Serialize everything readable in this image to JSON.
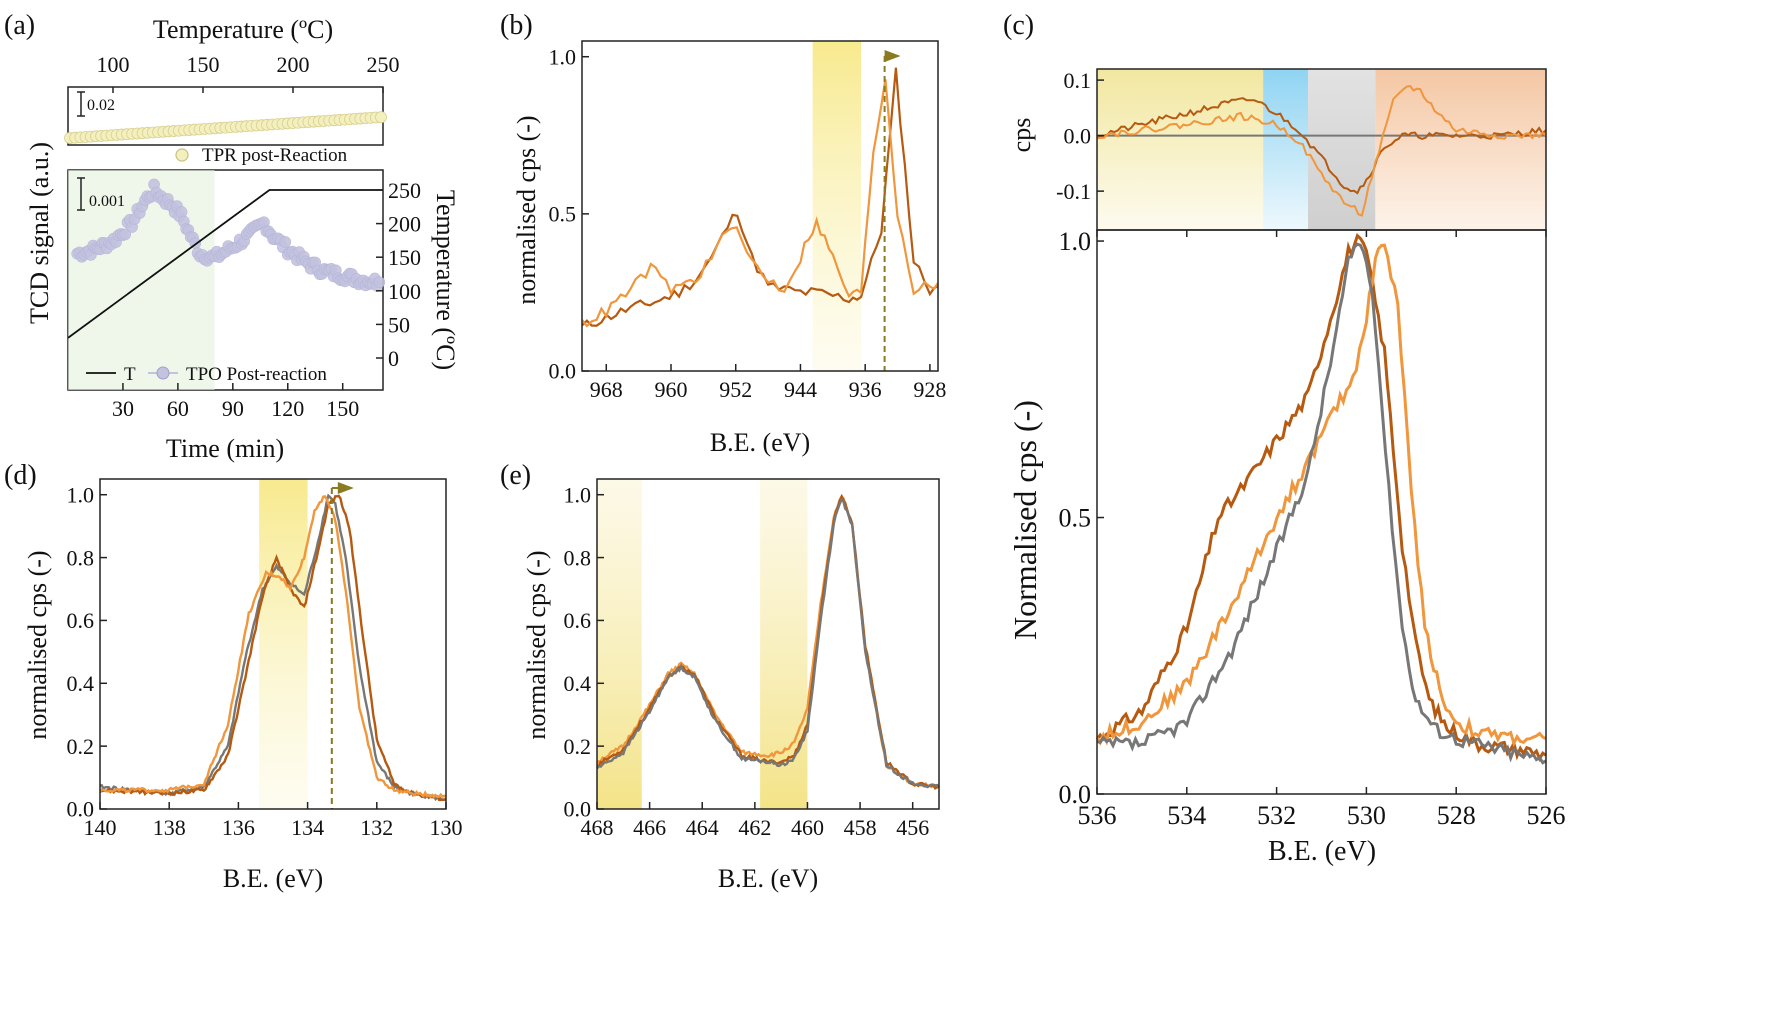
{
  "panel_labels": {
    "a": "(a)",
    "b": "(b)",
    "c": "(c)",
    "d": "(d)",
    "e": "(e)"
  },
  "colors": {
    "dark_orange": "#b55a10",
    "light_orange": "#f0963c",
    "gray": "#777777",
    "tpr_fill": "#f4efbf",
    "tpo_fill": "#c3c3e0",
    "yellow_band": "#f7e990",
    "blue_band": "#9ed8f0",
    "gray_band": "#d8d8d8",
    "peach_band": "#f6d2b4",
    "marker_arrow": "#8a7a20"
  },
  "chart_data": [
    {
      "id": "a",
      "type": "scatter",
      "top_axis": {
        "label": "Temperature (ºC)",
        "ticks": [
          100,
          150,
          200,
          250
        ]
      },
      "ylabel": "TCD signal (a.u.)",
      "xlabel": "Time (min)",
      "right_ylabel": "Temperature (ºC)",
      "x_ticks": [
        30,
        60,
        90,
        120,
        150
      ],
      "right_y_ticks": [
        0,
        50,
        100,
        150,
        200,
        250
      ],
      "scale_bars": [
        "0.02",
        "0.001"
      ],
      "series": [
        {
          "name": "TPR post-Reaction"
        },
        {
          "name": "TPO Post-reaction"
        },
        {
          "name": "T"
        }
      ],
      "tpo_x": [
        5,
        15,
        25,
        35,
        42,
        47,
        52,
        57,
        62,
        67,
        72,
        80,
        90,
        100,
        107,
        112,
        120,
        130,
        140,
        150,
        160,
        170
      ],
      "tpo_y": [
        0.62,
        0.64,
        0.68,
        0.76,
        0.86,
        0.91,
        0.87,
        0.84,
        0.79,
        0.7,
        0.62,
        0.6,
        0.65,
        0.71,
        0.76,
        0.7,
        0.64,
        0.58,
        0.54,
        0.52,
        0.5,
        0.49
      ],
      "tpr_y_start": 0.12,
      "tpr_y_end": 0.48,
      "temperature_ramp": {
        "t0": 0,
        "T0": 30,
        "t_end": 110,
        "T_end": 250,
        "t_max": 172
      }
    },
    {
      "id": "b",
      "type": "line",
      "xlabel": "B.E. (eV)",
      "ylabel": "normalised cps (-)",
      "x_ticks": [
        968,
        960,
        952,
        944,
        936,
        928
      ],
      "y_ticks": [
        "0.0",
        "0.5",
        "1.0"
      ],
      "xlim": [
        971,
        927
      ],
      "ylim": [
        0,
        1.05
      ],
      "band": [
        942.5,
        936.5
      ],
      "marker_line": 933.6,
      "series": [
        {
          "x": [
            971,
            968,
            965,
            962,
            959,
            957,
            955,
            953,
            951.8,
            950,
            948,
            946,
            944,
            942,
            940,
            938,
            936.5,
            934,
            932.2,
            930,
            928,
            927
          ],
          "y": [
            0.14,
            0.17,
            0.2,
            0.22,
            0.25,
            0.29,
            0.36,
            0.46,
            0.51,
            0.36,
            0.27,
            0.26,
            0.25,
            0.25,
            0.24,
            0.23,
            0.24,
            0.45,
            0.95,
            0.35,
            0.26,
            0.27
          ]
        },
        {
          "x": [
            971,
            968,
            965,
            962.5,
            960,
            957,
            955,
            953,
            952.5,
            950,
            948,
            946,
            944,
            943,
            942,
            941,
            940,
            938,
            936.5,
            935,
            933.5,
            932,
            930,
            928,
            927
          ],
          "y": [
            0.15,
            0.19,
            0.26,
            0.33,
            0.26,
            0.29,
            0.36,
            0.45,
            0.47,
            0.35,
            0.29,
            0.26,
            0.36,
            0.43,
            0.47,
            0.42,
            0.36,
            0.24,
            0.25,
            0.7,
            0.93,
            0.5,
            0.26,
            0.27,
            0.28
          ]
        }
      ]
    },
    {
      "id": "c",
      "type": "line",
      "xlabel": "B.E. (eV)",
      "ylabel": "Normalised cps (-)",
      "top_ylabel": "cps",
      "x_ticks": [
        536,
        534,
        532,
        530,
        528,
        526
      ],
      "top_y_ticks": [
        "0.1",
        "0.0",
        "-0.1"
      ],
      "y_ticks": [
        "0.0",
        "0.5",
        "1.0"
      ],
      "xlim": [
        536,
        526
      ],
      "ylim": [
        0,
        1.02
      ],
      "top_ylim": [
        -0.17,
        0.12
      ],
      "top_bands": [
        [
          536,
          532.3,
          "yellow"
        ],
        [
          532.3,
          531.3,
          "blue"
        ],
        [
          531.3,
          529.8,
          "gray"
        ],
        [
          529.8,
          526,
          "peach"
        ]
      ],
      "diff_series": [
        {
          "x": [
            536,
            535,
            534,
            533,
            532.5,
            532,
            531.5,
            531,
            530.5,
            530.2,
            530,
            529.6,
            529.2,
            529,
            528.6,
            528,
            527,
            526
          ],
          "y": [
            0.0,
            0.02,
            0.04,
            0.06,
            0.065,
            0.04,
            0.01,
            -0.04,
            -0.09,
            -0.1,
            -0.08,
            -0.02,
            0.0,
            0.0,
            0.0,
            0.0,
            0.0,
            0.01
          ]
        },
        {
          "x": [
            536,
            535,
            534,
            533.2,
            532.8,
            532,
            531.5,
            531,
            530.5,
            530.1,
            529.8,
            529.4,
            529.1,
            528.8,
            528.4,
            528,
            527,
            526
          ],
          "y": [
            0.0,
            0.01,
            0.02,
            0.03,
            0.035,
            0.02,
            -0.01,
            -0.07,
            -0.12,
            -0.14,
            -0.05,
            0.06,
            0.09,
            0.08,
            0.04,
            0.01,
            0.0,
            0.0
          ]
        }
      ],
      "series": [
        {
          "x": [
            536,
            535,
            534,
            533.3,
            532.8,
            532,
            531.3,
            530.8,
            530.4,
            530.2,
            530,
            529.6,
            529.2,
            528.9,
            528.6,
            528.2,
            527.5,
            526.5,
            526
          ],
          "y": [
            0.1,
            0.15,
            0.3,
            0.5,
            0.55,
            0.64,
            0.72,
            0.86,
            0.98,
            1.0,
            0.98,
            0.8,
            0.45,
            0.27,
            0.17,
            0.12,
            0.09,
            0.08,
            0.07
          ]
        },
        {
          "x": [
            536,
            535,
            534,
            533,
            532,
            531.3,
            530.8,
            530.3,
            530,
            529.8,
            529.6,
            529.3,
            529,
            528.7,
            528.3,
            528,
            527.5,
            526.5,
            526
          ],
          "y": [
            0.1,
            0.13,
            0.2,
            0.34,
            0.5,
            0.6,
            0.68,
            0.75,
            0.86,
            0.97,
            1.0,
            0.88,
            0.55,
            0.3,
            0.17,
            0.13,
            0.11,
            0.1,
            0.1
          ]
        },
        {
          "x": [
            536,
            535,
            534,
            533,
            532,
            531.3,
            530.8,
            530.4,
            530.2,
            530,
            529.8,
            529.5,
            529.2,
            528.9,
            528.5,
            528,
            527.5,
            526.5,
            526
          ],
          "y": [
            0.09,
            0.09,
            0.13,
            0.26,
            0.44,
            0.58,
            0.78,
            0.96,
            1.0,
            0.97,
            0.85,
            0.55,
            0.3,
            0.17,
            0.12,
            0.1,
            0.09,
            0.07,
            0.06
          ]
        }
      ]
    },
    {
      "id": "d",
      "type": "line",
      "xlabel": "B.E. (eV)",
      "ylabel": "normalised cps (-)",
      "x_ticks": [
        140,
        138,
        136,
        134,
        132,
        130
      ],
      "y_ticks": [
        "0.0",
        "0.2",
        "0.4",
        "0.6",
        "0.8",
        "1.0"
      ],
      "xlim": [
        140,
        130
      ],
      "ylim": [
        0,
        1.05
      ],
      "band": [
        135.4,
        134.0
      ],
      "marker_line": 133.3,
      "series": [
        {
          "x": [
            140,
            138,
            137,
            136.3,
            135.8,
            135.3,
            134.9,
            134.5,
            134.1,
            133.7,
            133.4,
            133.2,
            132.9,
            132.5,
            132,
            131.5,
            131,
            130
          ],
          "y": [
            0.07,
            0.05,
            0.07,
            0.2,
            0.48,
            0.7,
            0.77,
            0.72,
            0.68,
            0.85,
            1.0,
            0.97,
            0.8,
            0.45,
            0.15,
            0.07,
            0.05,
            0.03
          ]
        },
        {
          "x": [
            140,
            138,
            137,
            136.3,
            135.8,
            135.3,
            134.9,
            134.5,
            134.1,
            133.7,
            133.4,
            133.1,
            132.8,
            132.4,
            132,
            131.5,
            131,
            130
          ],
          "y": [
            0.06,
            0.05,
            0.06,
            0.17,
            0.42,
            0.68,
            0.8,
            0.7,
            0.64,
            0.82,
            0.97,
            1.0,
            0.9,
            0.55,
            0.22,
            0.08,
            0.05,
            0.03
          ]
        },
        {
          "x": [
            140,
            138,
            137,
            136.3,
            135.7,
            135.2,
            134.8,
            134.5,
            134.1,
            133.8,
            133.5,
            133.2,
            132.9,
            132.5,
            132,
            131.5,
            131,
            130
          ],
          "y": [
            0.06,
            0.06,
            0.08,
            0.27,
            0.62,
            0.75,
            0.74,
            0.7,
            0.8,
            0.95,
            1.0,
            0.92,
            0.7,
            0.32,
            0.1,
            0.06,
            0.05,
            0.04
          ]
        }
      ]
    },
    {
      "id": "e",
      "type": "line",
      "xlabel": "B.E. (eV)",
      "ylabel": "normalised cps (-)",
      "x_ticks": [
        468,
        466,
        464,
        462,
        460,
        458,
        456
      ],
      "y_ticks": [
        "0.0",
        "0.2",
        "0.4",
        "0.6",
        "0.8",
        "1.0"
      ],
      "xlim": [
        468,
        455
      ],
      "ylim": [
        0,
        1.05
      ],
      "bands": [
        [
          468,
          466.3
        ],
        [
          461.8,
          460.0
        ]
      ],
      "series": [
        {
          "x": [
            468,
            467,
            466,
            465.3,
            464.8,
            464.3,
            463.5,
            462.5,
            461.5,
            461,
            460.5,
            460,
            459.5,
            459,
            458.7,
            458.3,
            457.8,
            457,
            456,
            455
          ],
          "y": [
            0.15,
            0.2,
            0.33,
            0.43,
            0.46,
            0.43,
            0.3,
            0.18,
            0.17,
            0.18,
            0.21,
            0.32,
            0.65,
            0.93,
            1.0,
            0.9,
            0.5,
            0.14,
            0.08,
            0.07
          ]
        },
        {
          "x": [
            468,
            467,
            466,
            465.3,
            464.8,
            464.3,
            463.5,
            462.5,
            461.5,
            461,
            460.5,
            460,
            459.5,
            459,
            458.7,
            458.3,
            457.8,
            457,
            456,
            455
          ],
          "y": [
            0.14,
            0.19,
            0.32,
            0.42,
            0.45,
            0.43,
            0.29,
            0.17,
            0.15,
            0.15,
            0.17,
            0.27,
            0.62,
            0.92,
            1.0,
            0.91,
            0.52,
            0.15,
            0.08,
            0.07
          ]
        },
        {
          "x": [
            468,
            467,
            466,
            465.3,
            464.8,
            464.3,
            463.5,
            462.5,
            461.5,
            461,
            460.5,
            460,
            459.5,
            459,
            458.7,
            458.3,
            457.8,
            457,
            456,
            455
          ],
          "y": [
            0.13,
            0.18,
            0.31,
            0.42,
            0.45,
            0.42,
            0.28,
            0.16,
            0.15,
            0.14,
            0.16,
            0.25,
            0.6,
            0.91,
            0.99,
            0.9,
            0.5,
            0.14,
            0.08,
            0.07
          ]
        }
      ]
    }
  ]
}
